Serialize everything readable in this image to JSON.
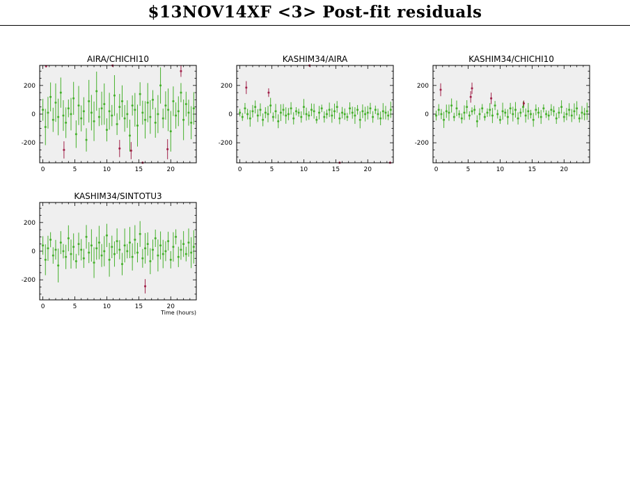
{
  "page": {
    "title": "$13NOV14XF <3> Post-fit residuals"
  },
  "colors": {
    "plot_bg": "#efefef",
    "good_points": "#44b02a",
    "flagged_points": "#a01f48",
    "axes": "#000000"
  },
  "chart_data": [
    {
      "type": "scatter",
      "title": "AIRA/CHICHI10",
      "xlabel": "",
      "ylabel": "",
      "xlim": [
        -0.5,
        24
      ],
      "ylim": [
        -340,
        340
      ],
      "xticks": [
        0,
        5,
        10,
        15,
        20
      ],
      "yticks": [
        -200,
        0,
        200
      ],
      "series": [
        {
          "kind": "good",
          "err_min": 60,
          "err_max": 150,
          "x": [
            0.0,
            0.4,
            0.8,
            1.2,
            1.6,
            2.0,
            2.4,
            2.8,
            3.2,
            3.6,
            4.0,
            4.4,
            4.8,
            5.2,
            5.6,
            6.0,
            6.4,
            6.8,
            7.2,
            7.6,
            8.0,
            8.4,
            8.8,
            9.2,
            9.6,
            10.0,
            10.4,
            10.8,
            11.2,
            11.6,
            12.0,
            12.4,
            12.8,
            13.2,
            13.6,
            14.0,
            14.4,
            14.8,
            15.2,
            15.6,
            16.0,
            16.4,
            16.8,
            17.2,
            17.6,
            18.0,
            18.4,
            18.8,
            19.2,
            19.6,
            20.0,
            20.4,
            20.8,
            21.2,
            21.6,
            22.0,
            22.4,
            22.8,
            23.2,
            23.6
          ],
          "y": [
            30,
            -90,
            10,
            120,
            -40,
            80,
            -20,
            150,
            -10,
            -60,
            40,
            0,
            110,
            -140,
            60,
            -30,
            20,
            -180,
            90,
            10,
            -50,
            160,
            -20,
            40,
            70,
            -110,
            20,
            -10,
            130,
            -70,
            50,
            90,
            -30,
            0,
            -150,
            60,
            30,
            -80,
            140,
            10,
            -40,
            80,
            -20,
            100,
            -60,
            0,
            200,
            -30,
            60,
            30,
            -120,
            90,
            -10,
            20,
            150,
            -40,
            70,
            10,
            -60,
            40
          ]
        },
        {
          "kind": "flagged",
          "x": [
            0.5,
            3.3,
            10.9,
            12.0,
            13.8,
            15.6,
            19.5,
            21.6
          ],
          "y": [
            335,
            -250,
            340,
            -240,
            -255,
            -340,
            -245,
            300
          ],
          "err": [
            10,
            60,
            10,
            60,
            60,
            10,
            70,
            40
          ]
        }
      ]
    },
    {
      "type": "scatter",
      "title": "KASHIM34/AIRA",
      "xlabel": "",
      "ylabel": "",
      "xlim": [
        -0.5,
        24
      ],
      "ylim": [
        -340,
        340
      ],
      "xticks": [
        0,
        5,
        10,
        15,
        20
      ],
      "yticks": [
        -200,
        0,
        200
      ],
      "series": [
        {
          "kind": "good",
          "err_min": 25,
          "err_max": 60,
          "x": [
            0.0,
            0.4,
            0.8,
            1.2,
            1.6,
            2.0,
            2.4,
            2.8,
            3.2,
            3.6,
            4.0,
            4.4,
            4.8,
            5.2,
            5.6,
            6.0,
            6.4,
            6.8,
            7.2,
            7.6,
            8.0,
            8.4,
            8.8,
            9.2,
            9.6,
            10.0,
            10.4,
            10.8,
            11.2,
            11.6,
            12.0,
            12.4,
            12.8,
            13.2,
            13.6,
            14.0,
            14.4,
            14.8,
            15.2,
            15.6,
            16.0,
            16.4,
            16.8,
            17.2,
            17.6,
            18.0,
            18.4,
            18.8,
            19.2,
            19.6,
            20.0,
            20.4,
            20.8,
            21.2,
            21.6,
            22.0,
            22.4,
            22.8,
            23.2,
            23.6
          ],
          "y": [
            10,
            -20,
            40,
            0,
            -30,
            20,
            50,
            -10,
            30,
            -40,
            10,
            0,
            60,
            -20,
            20,
            -50,
            10,
            30,
            -10,
            0,
            40,
            -30,
            20,
            10,
            -20,
            50,
            0,
            -10,
            30,
            20,
            -40,
            10,
            40,
            -20,
            0,
            30,
            -10,
            20,
            50,
            -30,
            10,
            0,
            -20,
            40,
            10,
            -10,
            30,
            -40,
            20,
            0,
            10,
            40,
            -20,
            30,
            0,
            -30,
            20,
            10,
            -10,
            30
          ]
        },
        {
          "kind": "flagged",
          "x": [
            1.0,
            4.5,
            10.9,
            15.6,
            23.5
          ],
          "y": [
            185,
            150,
            340,
            -340,
            -340
          ],
          "err": [
            45,
            30,
            10,
            10,
            10
          ]
        }
      ]
    },
    {
      "type": "scatter",
      "title": "KASHIM34/CHICHI10",
      "xlabel": "",
      "ylabel": "",
      "xlim": [
        -0.5,
        24
      ],
      "ylim": [
        -340,
        340
      ],
      "xticks": [
        0,
        5,
        10,
        15,
        20
      ],
      "yticks": [
        -200,
        0,
        200
      ],
      "series": [
        {
          "kind": "good",
          "err_min": 25,
          "err_max": 60,
          "x": [
            0.0,
            0.4,
            0.8,
            1.2,
            1.6,
            2.0,
            2.4,
            2.8,
            3.2,
            3.6,
            4.0,
            4.4,
            4.8,
            5.2,
            5.6,
            6.0,
            6.4,
            6.8,
            7.2,
            7.6,
            8.0,
            8.4,
            8.8,
            9.2,
            9.6,
            10.0,
            10.4,
            10.8,
            11.2,
            11.6,
            12.0,
            12.4,
            12.8,
            13.2,
            13.6,
            14.0,
            14.4,
            14.8,
            15.2,
            15.6,
            16.0,
            16.4,
            16.8,
            17.2,
            17.6,
            18.0,
            18.4,
            18.8,
            19.2,
            19.6,
            20.0,
            20.4,
            20.8,
            21.2,
            21.6,
            22.0,
            22.4,
            22.8,
            23.2,
            23.6
          ],
          "y": [
            -10,
            30,
            0,
            -40,
            20,
            10,
            60,
            -20,
            40,
            0,
            -30,
            10,
            50,
            -10,
            20,
            30,
            -50,
            0,
            40,
            -20,
            10,
            30,
            -10,
            60,
            0,
            -40,
            20,
            10,
            -20,
            40,
            0,
            30,
            -30,
            10,
            50,
            -10,
            20,
            0,
            -40,
            30,
            10,
            -20,
            40,
            0,
            -10,
            30,
            20,
            -30,
            10,
            50,
            -20,
            0,
            30,
            -10,
            20,
            40,
            -30,
            10,
            0,
            20
          ]
        },
        {
          "kind": "flagged",
          "x": [
            0.7,
            5.4,
            5.6,
            8.6,
            13.7
          ],
          "y": [
            170,
            120,
            180,
            110,
            75
          ],
          "err": [
            45,
            40,
            40,
            40,
            20
          ]
        }
      ]
    },
    {
      "type": "scatter",
      "title": "KASHIM34/SINTOTU3",
      "xlabel": "Time (hours)",
      "ylabel": "",
      "xlim": [
        -0.5,
        24
      ],
      "ylim": [
        -340,
        340
      ],
      "xticks": [
        0,
        5,
        10,
        15,
        20
      ],
      "yticks": [
        -200,
        0,
        200
      ],
      "series": [
        {
          "kind": "good",
          "err_min": 50,
          "err_max": 120,
          "x": [
            0.0,
            0.4,
            0.8,
            1.2,
            1.6,
            2.0,
            2.4,
            2.8,
            3.2,
            3.6,
            4.0,
            4.4,
            4.8,
            5.2,
            5.6,
            6.0,
            6.4,
            6.8,
            7.2,
            7.6,
            8.0,
            8.4,
            8.8,
            9.2,
            9.6,
            10.0,
            10.4,
            10.8,
            11.2,
            11.6,
            12.0,
            12.4,
            12.8,
            13.2,
            13.6,
            14.0,
            14.4,
            14.8,
            15.2,
            15.6,
            16.0,
            16.4,
            16.8,
            17.2,
            17.6,
            18.0,
            18.4,
            18.8,
            19.2,
            19.6,
            20.0,
            20.4,
            20.8,
            21.2,
            21.6,
            22.0,
            22.4,
            22.8,
            23.2,
            23.6
          ],
          "y": [
            40,
            -60,
            20,
            80,
            -30,
            10,
            -100,
            60,
            0,
            -40,
            90,
            -20,
            30,
            -70,
            50,
            10,
            -50,
            100,
            -10,
            40,
            -80,
            20,
            60,
            -30,
            0,
            110,
            -60,
            30,
            -20,
            70,
            10,
            -90,
            40,
            0,
            60,
            -40,
            80,
            -10,
            120,
            -50,
            20,
            50,
            -70,
            10,
            90,
            -30,
            40,
            -20,
            0,
            70,
            -60,
            30,
            100,
            -40,
            10,
            50,
            -20,
            60,
            -10,
            30
          ]
        },
        {
          "kind": "flagged",
          "x": [
            16.0
          ],
          "y": [
            -245
          ],
          "err": [
            50
          ]
        }
      ]
    }
  ]
}
